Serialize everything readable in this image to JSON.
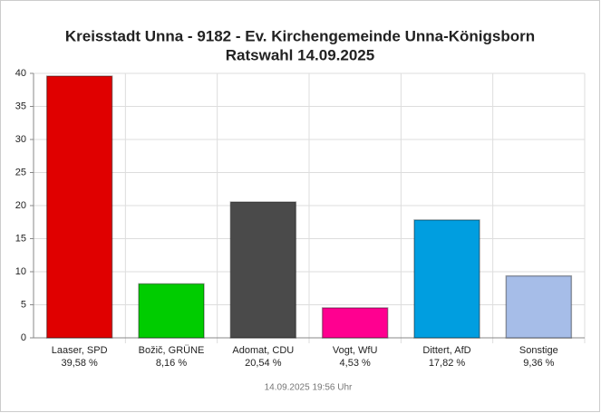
{
  "chart_data": {
    "type": "bar",
    "title": "Kreisstadt Unna - 9182 - Ev. Kirchengemeinde Unna-Königsborn",
    "subtitle": "Ratswahl 14.09.2025",
    "categories": [
      "Laaser, SPD",
      "Božič, GRÜNE",
      "Adomat, CDU",
      "Vogt, WfU",
      "Dittert, AfD",
      "Sonstige"
    ],
    "values": [
      39.58,
      8.16,
      20.54,
      4.53,
      17.82,
      9.36
    ],
    "value_labels": [
      "39,58 %",
      "8,16 %",
      "20,54 %",
      "4,53 %",
      "17,82 %",
      "9,36 %"
    ],
    "colors": [
      "#e00000",
      "#00cc00",
      "#4a4a4a",
      "#ff0090",
      "#009ee0",
      "#a6bde8"
    ],
    "ylim": [
      0,
      40
    ],
    "yticks": [
      0,
      5,
      10,
      15,
      20,
      25,
      30,
      35,
      40
    ],
    "grid": true,
    "footer": "14.09.2025 19:56 Uhr"
  }
}
